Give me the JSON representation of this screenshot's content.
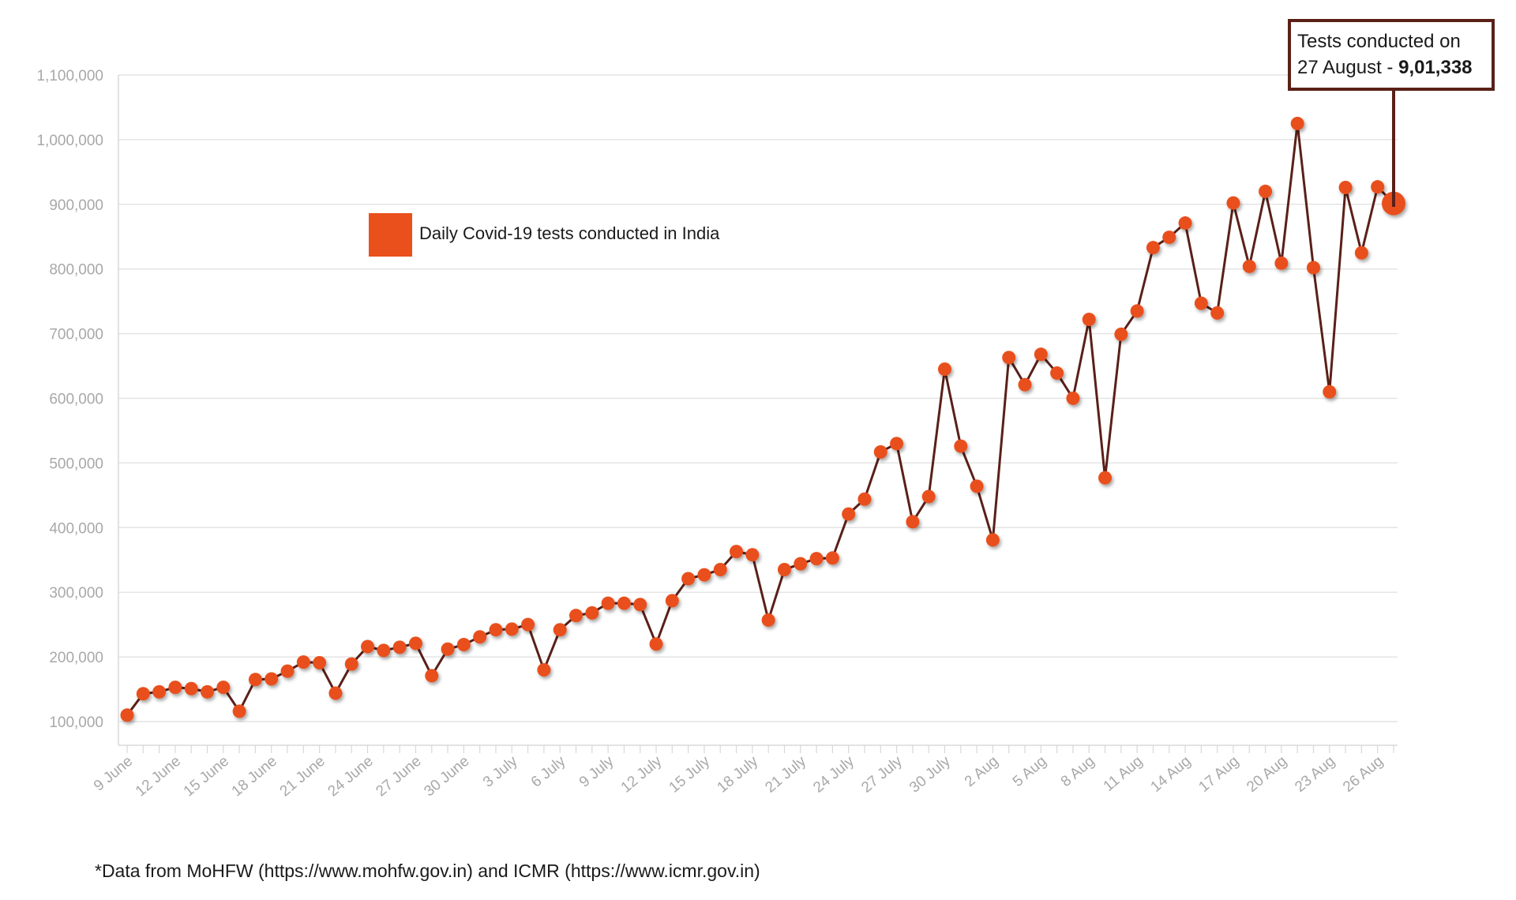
{
  "chart_data": {
    "type": "line",
    "legend": {
      "label": "Daily Covid-19 tests conducted in India",
      "color": "#e9501b"
    },
    "line_color": "#5a2018",
    "marker_color": "#e9501b",
    "grid": true,
    "ylim": [
      70000,
      1100000
    ],
    "y_ticks": [
      100000,
      200000,
      300000,
      400000,
      500000,
      600000,
      700000,
      800000,
      900000,
      1000000,
      1100000
    ],
    "y_tick_labels": [
      "100,000",
      "200,000",
      "300,000",
      "400,000",
      "500,000",
      "600,000",
      "700,000",
      "800,000",
      "900,000",
      "1,000,000",
      "1,100,000"
    ],
    "x_tick_labels": [
      "9 June",
      "12 June",
      "15 June",
      "18 June",
      "21 June",
      "24 June",
      "27 June",
      "30 June",
      "3 July",
      "6 July",
      "9 July",
      "12 July",
      "15 July",
      "18 July",
      "21 July",
      "24 July",
      "27 July",
      "30 July",
      "2 Aug",
      "5 Aug",
      "8 Aug",
      "11 Aug",
      "14 Aug",
      "17 Aug",
      "20 Aug",
      "23 Aug",
      "26 Aug"
    ],
    "x_tick_step": 3,
    "values": [
      110000,
      143000,
      146000,
      153000,
      151000,
      146000,
      153000,
      116000,
      165000,
      166000,
      178000,
      192000,
      191000,
      144000,
      189000,
      216000,
      210000,
      215000,
      221000,
      171000,
      212000,
      219000,
      231000,
      242000,
      243000,
      250000,
      180000,
      242000,
      264000,
      268000,
      283000,
      283000,
      281000,
      220000,
      287000,
      321000,
      327000,
      335000,
      363000,
      358000,
      257000,
      335000,
      344000,
      352000,
      353000,
      421000,
      444000,
      517000,
      530000,
      409000,
      448000,
      645000,
      526000,
      464000,
      381000,
      663000,
      621000,
      668000,
      639000,
      600000,
      722000,
      477000,
      699000,
      735000,
      833000,
      849000,
      871000,
      747000,
      732000,
      902000,
      804000,
      920000,
      809000,
      1025000,
      802000,
      610000,
      926000,
      825000,
      927000,
      901338
    ],
    "annotation": {
      "line1": "Tests conducted on",
      "line2_prefix": "27 August - ",
      "line2_value": "9,01,338"
    }
  },
  "footnote": "*Data from MoHFW (https://www.mohfw.gov.in) and ICMR (https://www.icmr.gov.in)"
}
